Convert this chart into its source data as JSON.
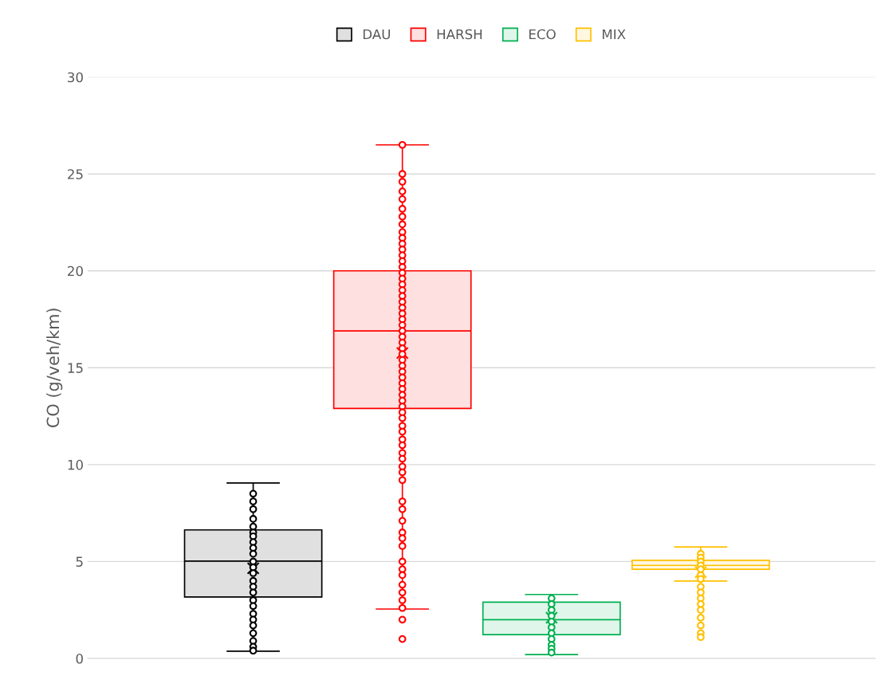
{
  "chart_data": {
    "type": "box",
    "ylabel": "CO (g/veh/km)",
    "categories": [
      null
    ],
    "ylim": [
      0,
      30
    ],
    "yticks": [
      0,
      5,
      10,
      15,
      20,
      25,
      30
    ],
    "grid": "y",
    "legend": "top",
    "tick_labels": "y",
    "marker": "circle",
    "series": [
      {
        "name": "DAU",
        "color": "#000000",
        "boxes": [
          {
            "low": 0.37,
            "q1": 3.17,
            "median": 5.02,
            "q3": 6.63,
            "high": 9.05,
            "mean": 4.65,
            "outliers": [
              8.5,
              8.1,
              7.7,
              7.2,
              6.8,
              6.5,
              6.3,
              6.0,
              5.7,
              5.4,
              5.0,
              4.7,
              4.4,
              4.0,
              3.7,
              3.4,
              3.0,
              2.7,
              2.3,
              2.0,
              1.7,
              1.3,
              0.9,
              0.6,
              0.4
            ]
          }
        ]
      },
      {
        "name": "HARSH",
        "color": "#ff0000",
        "boxes": [
          {
            "low": 2.55,
            "q1": 12.9,
            "median": 16.9,
            "q3": 20.0,
            "high": 26.5,
            "mean": 15.76,
            "outliers": [
              26.5,
              25.0,
              24.6,
              24.1,
              23.7,
              23.2,
              22.8,
              22.4,
              22.0,
              21.7,
              21.4,
              21.1,
              20.8,
              20.5,
              20.2,
              19.9,
              19.6,
              19.3,
              19.0,
              18.7,
              18.4,
              18.1,
              17.8,
              17.5,
              17.2,
              16.9,
              16.6,
              16.3,
              16.0,
              15.7,
              15.4,
              15.1,
              14.8,
              14.5,
              14.2,
              13.9,
              13.6,
              13.3,
              13.0,
              12.7,
              12.4,
              12.0,
              11.7,
              11.3,
              11.0,
              10.6,
              10.3,
              9.9,
              9.6,
              9.2,
              8.1,
              7.7,
              7.1,
              6.5,
              6.2,
              5.8,
              5.0,
              4.6,
              4.3,
              3.8,
              3.4,
              3.0,
              2.6,
              2.0,
              1.0
            ]
          }
        ]
      },
      {
        "name": "ECO",
        "color": "#00b050",
        "boxes": [
          {
            "low": 0.2,
            "q1": 1.23,
            "median": 2.0,
            "q3": 2.9,
            "high": 3.3,
            "mean": 2.1,
            "outliers": [
              3.1,
              2.8,
              2.5,
              2.2,
              1.9,
              1.6,
              1.3,
              1.0,
              0.7,
              0.5,
              0.3
            ]
          }
        ]
      },
      {
        "name": "MIX",
        "color": "#ffc000",
        "boxes": [
          {
            "low": 3.99,
            "q1": 4.6,
            "median": 4.8,
            "q3": 5.06,
            "high": 5.75,
            "mean": 4.45,
            "outliers": [
              5.4,
              5.2,
              5.0,
              4.8,
              4.6,
              4.3,
              4.1,
              3.7,
              3.4,
              3.1,
              2.8,
              2.5,
              2.1,
              1.7,
              1.3,
              1.1
            ]
          }
        ]
      }
    ]
  }
}
